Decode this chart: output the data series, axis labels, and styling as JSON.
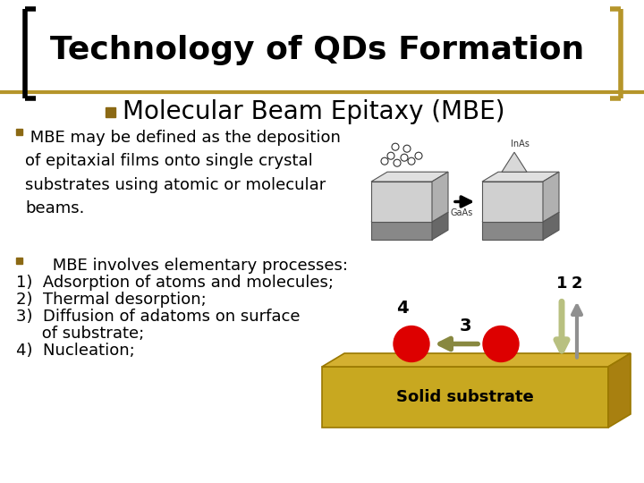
{
  "background_color": "#ffffff",
  "title": "Technology of QDs Formation",
  "title_fontsize": 26,
  "title_color": "#000000",
  "bracket_left_color": "#000000",
  "bracket_right_color": "#b5952a",
  "subtitle": "Molecular Beam Epitaxy (MBE)",
  "subtitle_fontsize": 20,
  "bullet_color": "#8B6914",
  "bullet1_text": " MBE may be defined as the deposition\nof epitaxial films onto single crystal\nsubstrates using atomic or molecular\nbeams.",
  "bullet2_line0": "■     MBE involves elementary processes:",
  "bullet2_line1": "1)  Adsorption of atoms and molecules;",
  "bullet2_line2": "2)  Thermal desorption;",
  "bullet2_line3": "3)  Diffusion of adatoms on surface",
  "bullet2_line4": "     of substrate;",
  "bullet2_line5": "4)  Nucleation;",
  "text_fontsize": 13,
  "substrate_color": "#c8a820",
  "substrate_edge": "#9a7800",
  "substrate_label": "Solid substrate",
  "substrate_label_fontsize": 13,
  "red_dot_color": "#dd0000",
  "arrow_down_color": "#b8c080",
  "arrow_left_color": "#888840",
  "arrow_up_color": "#909090",
  "label1": "1",
  "label2": "2",
  "label3": "3",
  "label4": "4",
  "separator_color": "#b5952a",
  "gaas_label": "GaAs",
  "inas_label": "InAs"
}
